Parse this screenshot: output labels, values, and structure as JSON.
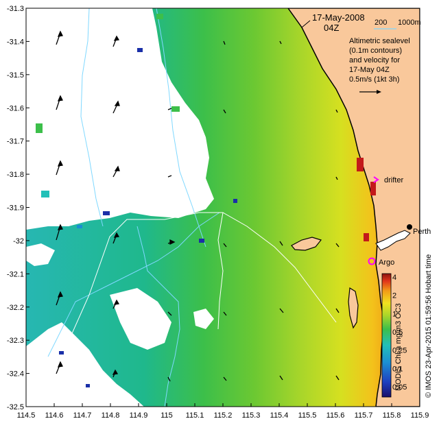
{
  "map": {
    "date_label": "17-May-2008",
    "time_label": "04Z",
    "isobaths": [
      "200",
      "1000m"
    ],
    "legend_lines": [
      "Altimetric sealevel",
      "(0.1m contours)",
      "and velocity for",
      "17-May 04Z",
      "0.5m/s (1kt 3h)"
    ],
    "markers": {
      "drifter": "drifter",
      "argo": "Argo",
      "city": "Perth"
    },
    "x_ticks": [
      "114.5",
      "114.6",
      "114.7",
      "114.8",
      "114.9",
      "115",
      "115.1",
      "115.2",
      "115.3",
      "115.4",
      "115.5",
      "115.6",
      "115.7",
      "115.8",
      "115.9"
    ],
    "y_ticks": [
      "-31.3",
      "-31.4",
      "-31.5",
      "-31.6",
      "-31.7",
      "-31.8",
      "-31.9",
      "-32",
      "-32.1",
      "-32.2",
      "-32.3",
      "-32.4",
      "-32.5"
    ],
    "colorbar_labels": [
      "4",
      "2",
      "1",
      "0.5",
      "0.25",
      "0.1",
      "0.05"
    ],
    "colorbar_title": "MODIS Chl-a mg/m3 OC3",
    "credit": "© IMOS 23-Apr-2015 01:59:56 Hobart time",
    "colors": {
      "land": "#f9c89b",
      "coast": "#000000",
      "cloud": "#ffffff",
      "cyan_contour": "#7fd8ff",
      "white_contour": "#ffffff",
      "drifter_marker": "#ff00ff",
      "argo_marker": "#ff00ff"
    }
  }
}
